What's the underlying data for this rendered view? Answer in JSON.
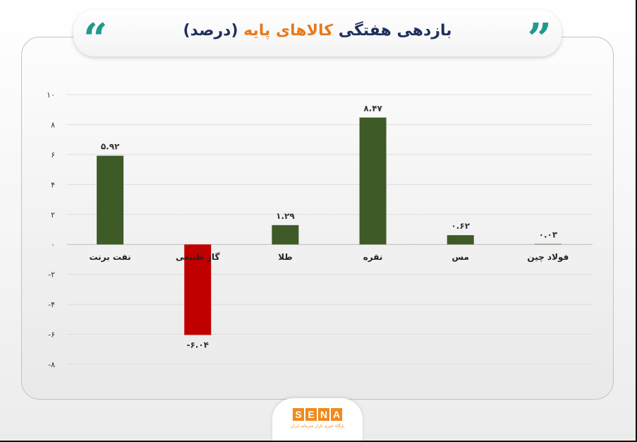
{
  "header": {
    "title_part1": "بازدهی هفتگی",
    "title_highlight": "کالاهای پایه",
    "title_part3": "(درصد)"
  },
  "colors": {
    "positive": "#3e5a27",
    "negative": "#c00000",
    "title": "#1f2f5e",
    "highlight": "#e8791c",
    "quote": "#1f9a8e",
    "brand": "#f08a1c"
  },
  "logo": {
    "letters": [
      "S",
      "E",
      "N",
      "A"
    ],
    "subtitle": "پایگاه خبری بازار سرمایه ایران"
  },
  "chart_data": {
    "type": "bar",
    "categories": [
      "نفت برنت",
      "گاز طبیعی",
      "طلا",
      "نقره",
      "مس",
      "فولاد چین"
    ],
    "values": [
      5.92,
      -6.04,
      1.29,
      8.47,
      0.62,
      0.03
    ],
    "value_labels": [
      "۵.۹۲",
      "-۶.۰۴",
      "۱.۲۹",
      "۸.۴۷",
      "۰.۶۲",
      "۰.۰۳"
    ],
    "ylim": [
      -8,
      10
    ],
    "yticks": [
      10,
      8,
      6,
      4,
      2,
      0,
      -2,
      -4,
      -6,
      -8
    ],
    "ytick_labels": [
      "۱۰",
      "۸",
      "۶",
      "۴",
      "۲",
      "۰",
      "-۲",
      "-۴",
      "-۶",
      "-۸"
    ],
    "grid": true,
    "title": "",
    "xlabel": "",
    "ylabel": ""
  }
}
